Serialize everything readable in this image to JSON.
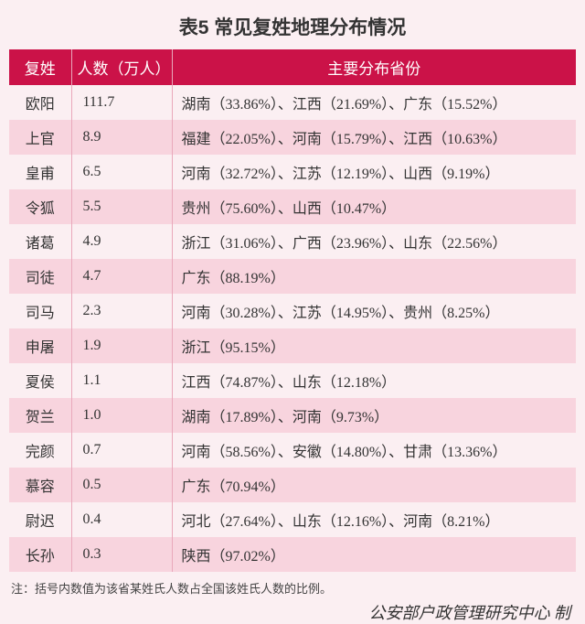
{
  "title": "表5  常见复姓地理分布情况",
  "columns": {
    "surname": "复姓",
    "count": "人数（万人）",
    "distribution": "主要分布省份"
  },
  "row_colors": {
    "odd": "#fbeff2",
    "even": "#f8d4de"
  },
  "rows": [
    {
      "surname": "欧阳",
      "count": "111.7",
      "distribution": "湖南（33.86%）、江西（21.69%）、广东（15.52%）"
    },
    {
      "surname": "上官",
      "count": "8.9",
      "distribution": "福建（22.05%）、河南（15.79%）、江西（10.63%）"
    },
    {
      "surname": "皇甫",
      "count": "6.5",
      "distribution": "河南（32.72%）、江苏（12.19%）、山西（9.19%）"
    },
    {
      "surname": "令狐",
      "count": "5.5",
      "distribution": "贵州（75.60%）、山西（10.47%）"
    },
    {
      "surname": "诸葛",
      "count": "4.9",
      "distribution": "浙江（31.06%）、广西（23.96%）、山东（22.56%）"
    },
    {
      "surname": "司徒",
      "count": "4.7",
      "distribution": "广东（88.19%）"
    },
    {
      "surname": "司马",
      "count": "2.3",
      "distribution": "河南（30.28%）、江苏（14.95%）、贵州（8.25%）"
    },
    {
      "surname": "申屠",
      "count": "1.9",
      "distribution": "浙江（95.15%）"
    },
    {
      "surname": "夏侯",
      "count": "1.1",
      "distribution": "江西（74.87%）、山东（12.18%）"
    },
    {
      "surname": "贺兰",
      "count": "1.0",
      "distribution": "湖南（17.89%）、河南（9.73%）"
    },
    {
      "surname": "完颜",
      "count": "0.7",
      "distribution": "河南（58.56%）、安徽（14.80%）、甘肃（13.36%）"
    },
    {
      "surname": "慕容",
      "count": "0.5",
      "distribution": "广东（70.94%）"
    },
    {
      "surname": "尉迟",
      "count": "0.4",
      "distribution": "河北（27.64%）、山东（12.16%）、河南（8.21%）"
    },
    {
      "surname": "长孙",
      "count": "0.3",
      "distribution": "陕西（97.02%）"
    }
  ],
  "note": "注：括号内数值为该省某姓氏人数占全国该姓氏人数的比例。",
  "source": "公安部户政管理研究中心 制"
}
